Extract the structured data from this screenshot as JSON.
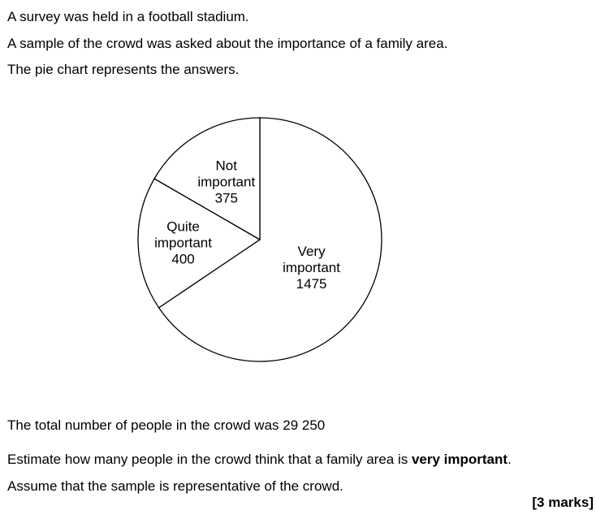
{
  "question": {
    "line1": "A survey was held in a football stadium.",
    "line2": "A sample of the crowd was asked about the importance of a family area.",
    "line3": "The pie chart represents the answers.",
    "line4": "The total number of people in the crowd was 29 250",
    "line5_before": "Estimate how many people in the crowd think that a family area is ",
    "line5_bold": "very important",
    "line5_after": ".",
    "line6": "Assume that the sample is representative of the crowd.",
    "marks": "[3 marks]"
  },
  "chart_data": {
    "type": "pie",
    "slices": [
      {
        "label": [
          "Very",
          "important"
        ],
        "value": 1475
      },
      {
        "label": [
          "Quite",
          "important"
        ],
        "value": 400
      },
      {
        "label": [
          "Not",
          "important"
        ],
        "value": 375
      }
    ],
    "colors": {
      "fill": "#ffffff",
      "stroke": "#000000"
    }
  }
}
